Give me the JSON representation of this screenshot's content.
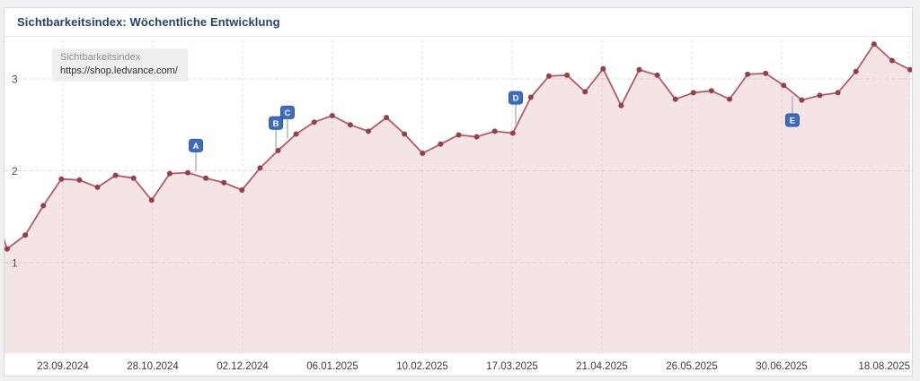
{
  "header": {
    "title": "Sichtbarkeitsindex: Wöchentliche Entwicklung"
  },
  "legend": {
    "series_label": "Sichtbarkeitsindex",
    "url": "https://shop.ledvance.com/"
  },
  "chart_data": {
    "type": "area",
    "title": "Sichtbarkeitsindex: Wöchentliche Entwicklung",
    "xlabel": "",
    "ylabel": "Sichtbarkeitsindex",
    "x_tick_labels": [
      "23.09.2024",
      "28.10.2024",
      "02.12.2024",
      "06.01.2025",
      "10.02.2025",
      "17.03.2025",
      "21.04.2025",
      "26.05.2025",
      "30.06.2025",
      "18.08.2025"
    ],
    "y_tick_labels": [
      "1",
      "2",
      "3"
    ],
    "ylim": [
      0,
      3.45
    ],
    "grid": "dashed",
    "legend_position": "top-left",
    "frequency": "weekly",
    "lead_in_value": 1.4,
    "series": [
      {
        "name": "Sichtbarkeitsindex https://shop.ledvance.com/",
        "values": [
          1.15,
          1.3,
          1.62,
          1.91,
          1.9,
          1.82,
          1.95,
          1.92,
          1.68,
          1.97,
          1.98,
          1.92,
          1.87,
          1.79,
          2.03,
          2.22,
          2.4,
          2.53,
          2.6,
          2.5,
          2.43,
          2.58,
          2.4,
          2.19,
          2.29,
          2.39,
          2.37,
          2.43,
          2.41,
          2.8,
          3.03,
          3.04,
          2.86,
          3.11,
          2.71,
          3.1,
          3.04,
          2.78,
          2.85,
          2.87,
          2.78,
          3.05,
          3.06,
          2.93,
          2.77,
          2.82,
          2.85,
          3.08,
          3.38,
          3.2,
          3.1
        ]
      }
    ],
    "events": [
      {
        "label": "A",
        "week": 10.45,
        "position": "above"
      },
      {
        "label": "B",
        "week": 14.88,
        "position": "above"
      },
      {
        "label": "C",
        "week": 15.52,
        "position": "above"
      },
      {
        "label": "D",
        "week": 28.16,
        "position": "above"
      },
      {
        "label": "E",
        "week": 43.48,
        "position": "below"
      }
    ],
    "colors": {
      "line": "#b25b62",
      "points": "#953f48",
      "area_fill": "#f5e4e6",
      "event_marker": "#3d6cc0",
      "event_marker_border": "#2e57a5",
      "event_stem": "#b6bac0",
      "grid": "#9aa0ab",
      "title": "#26406c",
      "axis_text": "#3a3a3c"
    }
  }
}
